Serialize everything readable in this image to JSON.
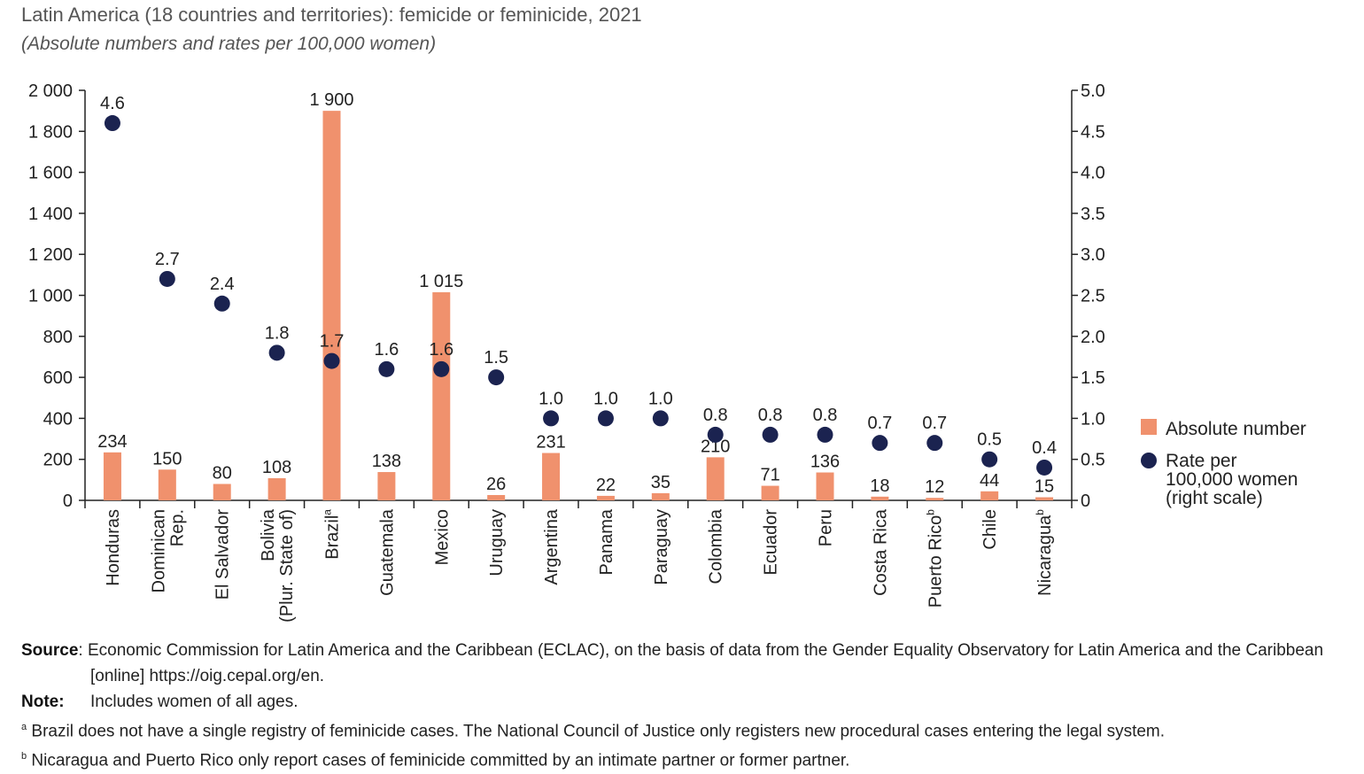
{
  "title": "Latin America (18 countries and territories): femicide or feminicide, 2021",
  "subtitle": "(Absolute numbers and rates per 100,000 women)",
  "colors": {
    "bar": "#f0916d",
    "dot": "#1b2350",
    "axis": "#222222"
  },
  "chart_data": {
    "type": "bar",
    "categories": [
      "Honduras",
      "Dominican Rep.",
      "El Salvador",
      "Bolivia (Plur. State of)",
      "Brazil",
      "Guatemala",
      "Mexico",
      "Uruguay",
      "Argentina",
      "Panama",
      "Paraguay",
      "Colombia",
      "Ecuador",
      "Peru",
      "Costa Rica",
      "Puerto Rico",
      "Chile",
      "Nicaragua"
    ],
    "category_lines": [
      [
        "Honduras"
      ],
      [
        "Dominican",
        "Rep."
      ],
      [
        "El Salvador"
      ],
      [
        "Bolivia",
        "(Plur. State of)"
      ],
      [
        "Brazil"
      ],
      [
        "Guatemala"
      ],
      [
        "Mexico"
      ],
      [
        "Uruguay"
      ],
      [
        "Argentina"
      ],
      [
        "Panama"
      ],
      [
        "Paraguay"
      ],
      [
        "Colombia"
      ],
      [
        "Ecuador"
      ],
      [
        "Peru"
      ],
      [
        "Costa Rica"
      ],
      [
        "Puerto Rico"
      ],
      [
        "Chile"
      ],
      [
        "Nicaragua"
      ]
    ],
    "category_marks": [
      "",
      "",
      "",
      "",
      "a",
      "",
      "",
      "",
      "",
      "",
      "",
      "",
      "",
      "",
      "",
      "b",
      "",
      "b"
    ],
    "series": [
      {
        "name": "Absolute number",
        "type": "bar",
        "axis": "left",
        "values": [
          234,
          150,
          80,
          108,
          1900,
          138,
          1015,
          26,
          231,
          22,
          35,
          210,
          71,
          136,
          18,
          12,
          44,
          15
        ],
        "labels": [
          "234",
          "150",
          "80",
          "108",
          "1 900",
          "138",
          "1 015",
          "26",
          "231",
          "22",
          "35",
          "210",
          "71",
          "136",
          "18",
          "12",
          "44",
          "15"
        ]
      },
      {
        "name": "Rate per 100,000 women (right scale)",
        "type": "scatter",
        "axis": "right",
        "values": [
          4.6,
          2.7,
          2.4,
          1.8,
          1.7,
          1.6,
          1.6,
          1.5,
          1.0,
          1.0,
          1.0,
          0.8,
          0.8,
          0.8,
          0.7,
          0.7,
          0.5,
          0.4
        ],
        "labels": [
          "4.6",
          "2.7",
          "2.4",
          "1.8",
          "1.7",
          "1.6",
          "1.6",
          "1.5",
          "1.0",
          "1.0",
          "1.0",
          "0.8",
          "0.8",
          "0.8",
          "0.7",
          "0.7",
          "0.5",
          "0.4"
        ]
      }
    ],
    "ylim_left": [
      0,
      2000
    ],
    "yticks_left": [
      "0",
      "200",
      "400",
      "600",
      "800",
      "1 000",
      "1 200",
      "1 400",
      "1 600",
      "1 800",
      "2 000"
    ],
    "ylim_right": [
      0,
      5
    ],
    "yticks_right": [
      "0",
      "0.5",
      "1.0",
      "1.5",
      "2.0",
      "2.5",
      "3.0",
      "3.5",
      "4.0",
      "4.5",
      "5.0"
    ],
    "legend": {
      "position": "right",
      "items": [
        {
          "marker": "square",
          "lines": [
            "Absolute number"
          ]
        },
        {
          "marker": "circle",
          "lines": [
            "Rate per",
            "100,000 women",
            "(right scale)"
          ]
        }
      ]
    },
    "grid": false
  },
  "notes": {
    "source_label": "Source",
    "source_text_1": ": Economic Commission for Latin America and the Caribbean (ECLAC), on the basis of data from the Gender Equality Observatory for Latin America and the Caribbean",
    "source_text_2": "[online] https://oig.cepal.org/en.",
    "note_label": "Note",
    "note_text": "Includes women of all ages.",
    "footnote_a_mark": "a",
    "footnote_a": "Brazil does not have a single registry of feminicide cases. The National Council of Justice only registers new procedural cases entering the legal system.",
    "footnote_b_mark": "b",
    "footnote_b": "Nicaragua and Puerto Rico only report cases of feminicide committed by an intimate partner or former partner."
  }
}
